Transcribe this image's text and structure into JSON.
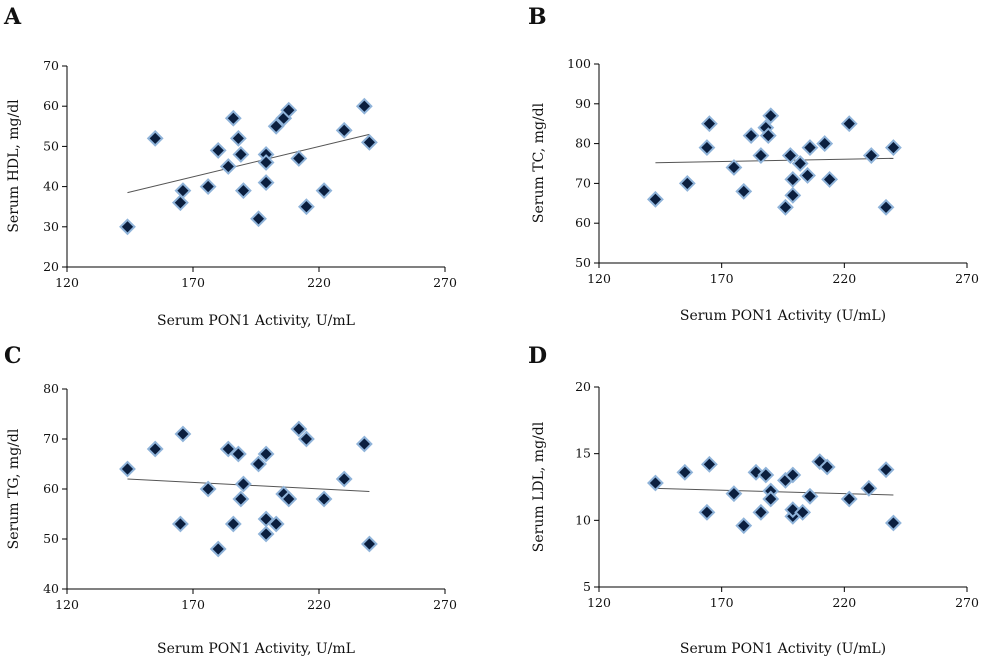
{
  "colors": {
    "marker_fill": "#0b1f3f",
    "marker_edge": "#8fb3d9",
    "axis": "#000000",
    "trendline": "#555555"
  },
  "marker_shape": "diamond",
  "chart_data": [
    {
      "panel": "A",
      "type": "scatter",
      "xlabel": "Serum PON1 Activity, U/mL",
      "ylabel": "Serum HDL, mg/dl",
      "xlim": [
        120,
        270
      ],
      "ylim": [
        20,
        70
      ],
      "xticks": [
        120,
        170,
        220,
        270
      ],
      "yticks": [
        20,
        30,
        40,
        50,
        60,
        70
      ],
      "x_axis_at": 20,
      "trendline": [
        [
          144,
          38.5
        ],
        [
          240,
          53
        ]
      ],
      "points": [
        [
          144,
          30
        ],
        [
          155,
          52
        ],
        [
          165,
          36
        ],
        [
          166,
          39
        ],
        [
          176,
          40
        ],
        [
          180,
          49
        ],
        [
          184,
          45
        ],
        [
          186,
          57
        ],
        [
          188,
          52
        ],
        [
          189,
          48
        ],
        [
          190,
          39
        ],
        [
          196,
          32
        ],
        [
          199,
          41
        ],
        [
          199,
          48
        ],
        [
          199,
          46
        ],
        [
          203,
          55
        ],
        [
          206,
          57
        ],
        [
          208,
          59
        ],
        [
          212,
          47
        ],
        [
          215,
          35
        ],
        [
          222,
          39
        ],
        [
          230,
          54
        ],
        [
          238,
          60
        ],
        [
          240,
          51
        ]
      ]
    },
    {
      "panel": "B",
      "type": "scatter",
      "xlabel": "Serum PON1 Activity (U/mL)",
      "ylabel": "Serum TC, mg/dl",
      "xlim": [
        120,
        270
      ],
      "ylim": [
        50,
        100
      ],
      "xticks": [
        120,
        170,
        220,
        270
      ],
      "yticks": [
        50,
        60,
        70,
        80,
        90,
        100
      ],
      "x_axis_at": 50,
      "trendline": [
        [
          143,
          75.2
        ],
        [
          240,
          76.3
        ]
      ],
      "points": [
        [
          143,
          66
        ],
        [
          156,
          70
        ],
        [
          164,
          79
        ],
        [
          165,
          85
        ],
        [
          175,
          74
        ],
        [
          179,
          68
        ],
        [
          182,
          82
        ],
        [
          186,
          77
        ],
        [
          188,
          84
        ],
        [
          189,
          82
        ],
        [
          190,
          87
        ],
        [
          196,
          64
        ],
        [
          198,
          77
        ],
        [
          199,
          67
        ],
        [
          199,
          71
        ],
        [
          202,
          75
        ],
        [
          205,
          72
        ],
        [
          206,
          79
        ],
        [
          212,
          80
        ],
        [
          214,
          71
        ],
        [
          222,
          85
        ],
        [
          231,
          77
        ],
        [
          237,
          64
        ],
        [
          240,
          79
        ]
      ]
    },
    {
      "panel": "C",
      "type": "scatter",
      "xlabel": "Serum PON1 Activity, U/mL",
      "ylabel": "Serum TG, mg/dl",
      "xlim": [
        120,
        270
      ],
      "ylim": [
        40,
        80
      ],
      "xticks": [
        120,
        170,
        220,
        270
      ],
      "yticks": [
        40,
        50,
        60,
        70,
        80
      ],
      "x_axis_at": 40,
      "trendline": [
        [
          144,
          62
        ],
        [
          240,
          59.5
        ]
      ],
      "points": [
        [
          144,
          64
        ],
        [
          155,
          68
        ],
        [
          165,
          53
        ],
        [
          166,
          71
        ],
        [
          176,
          60
        ],
        [
          180,
          48
        ],
        [
          184,
          68
        ],
        [
          186,
          53
        ],
        [
          188,
          67
        ],
        [
          189,
          58
        ],
        [
          190,
          61
        ],
        [
          196,
          65
        ],
        [
          199,
          67
        ],
        [
          199,
          51
        ],
        [
          199,
          54
        ],
        [
          203,
          53
        ],
        [
          206,
          59
        ],
        [
          208,
          58
        ],
        [
          212,
          72
        ],
        [
          215,
          70
        ],
        [
          222,
          58
        ],
        [
          230,
          62
        ],
        [
          238,
          69
        ],
        [
          240,
          49
        ]
      ]
    },
    {
      "panel": "D",
      "type": "scatter",
      "xlabel": "Serum PON1 Activity (U/mL)",
      "ylabel": "Serum LDL, mg/dl",
      "xlim": [
        120,
        270
      ],
      "ylim": [
        5,
        20
      ],
      "xticks": [
        120,
        170,
        220,
        270
      ],
      "yticks": [
        5,
        10,
        15,
        20
      ],
      "x_axis_at": 5,
      "trendline": [
        [
          143,
          12.4
        ],
        [
          240,
          11.9
        ]
      ],
      "points": [
        [
          143,
          12.8
        ],
        [
          155,
          13.6
        ],
        [
          164,
          10.6
        ],
        [
          165,
          14.2
        ],
        [
          175,
          12
        ],
        [
          179,
          9.6
        ],
        [
          184,
          13.6
        ],
        [
          186,
          10.6
        ],
        [
          188,
          13.4
        ],
        [
          190,
          12.2
        ],
        [
          190,
          11.6
        ],
        [
          196,
          13
        ],
        [
          199,
          13.4
        ],
        [
          199,
          10.3
        ],
        [
          199,
          10.8
        ],
        [
          203,
          10.6
        ],
        [
          206,
          11.8
        ],
        [
          210,
          14.4
        ],
        [
          213,
          14
        ],
        [
          222,
          11.6
        ],
        [
          230,
          12.4
        ],
        [
          237,
          13.8
        ],
        [
          240,
          9.8
        ]
      ]
    }
  ]
}
